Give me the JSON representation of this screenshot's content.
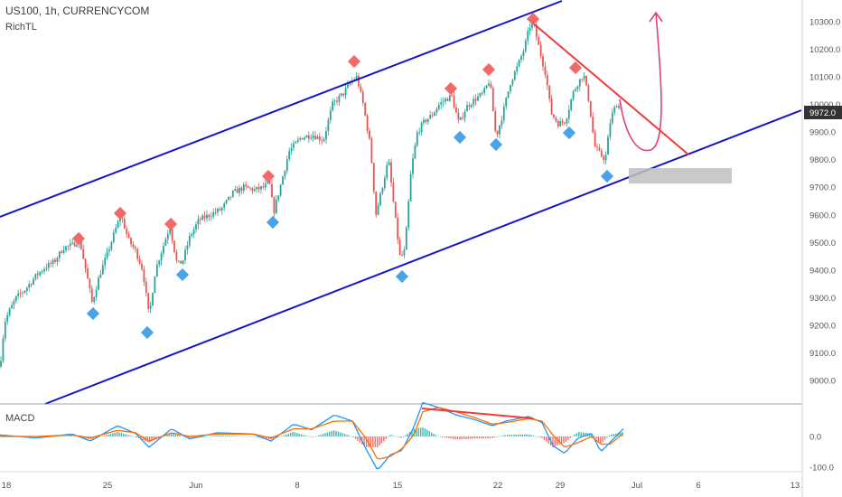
{
  "header": {
    "symbol": "US100, 1h, CURRENCYCOM",
    "author": "RichTL",
    "indicator": "MACD"
  },
  "colors": {
    "up": "#26a69a",
    "down": "#ef5350",
    "channel": "#1515c8",
    "resistance": "#ef3b3b",
    "projection": "#e0407a",
    "zone": "#bfbfbf",
    "marker_high": "#f06a6a",
    "marker_low": "#4aa3e8",
    "macd_line": "#2196f3",
    "signal_line": "#ff6d00",
    "price_tag": "#333333"
  },
  "chart_data": [
    {
      "type": "candlestick",
      "x_axis": {
        "labels": [
          "18",
          "25",
          "Jun",
          "8",
          "15",
          "22",
          "29",
          "Jul",
          "6",
          "13"
        ]
      },
      "y_axis": {
        "ticks": [
          "10300.0",
          "10200.0",
          "10100.0",
          "10000.0",
          "9900.0",
          "9800.0",
          "9700.0",
          "9600.0",
          "9500.0",
          "9400.0",
          "9300.0",
          "9200.0",
          "9100.0",
          "9000.0"
        ],
        "range": [
          8920,
          10360
        ]
      },
      "last_price": "9972.0",
      "price_path": [
        [
          0,
          9050
        ],
        [
          5,
          9210
        ],
        [
          10,
          9250
        ],
        [
          18,
          9300
        ],
        [
          28,
          9330
        ],
        [
          40,
          9380
        ],
        [
          50,
          9410
        ],
        [
          60,
          9430
        ],
        [
          70,
          9480
        ],
        [
          80,
          9490
        ],
        [
          88,
          9510
        ],
        [
          95,
          9400
        ],
        [
          102,
          9280
        ],
        [
          110,
          9380
        ],
        [
          120,
          9470
        ],
        [
          127,
          9540
        ],
        [
          134,
          9600
        ],
        [
          142,
          9510
        ],
        [
          150,
          9470
        ],
        [
          158,
          9400
        ],
        [
          165,
          9230
        ],
        [
          172,
          9400
        ],
        [
          180,
          9480
        ],
        [
          188,
          9560
        ],
        [
          196,
          9420
        ],
        [
          202,
          9430
        ],
        [
          210,
          9520
        ],
        [
          220,
          9580
        ],
        [
          232,
          9600
        ],
        [
          245,
          9620
        ],
        [
          258,
          9680
        ],
        [
          270,
          9700
        ],
        [
          282,
          9690
        ],
        [
          292,
          9700
        ],
        [
          298,
          9720
        ],
        [
          303,
          9610
        ],
        [
          310,
          9700
        ],
        [
          320,
          9830
        ],
        [
          333,
          9880
        ],
        [
          346,
          9890
        ],
        [
          358,
          9870
        ],
        [
          368,
          10000
        ],
        [
          380,
          10040
        ],
        [
          388,
          10080
        ],
        [
          395,
          10100
        ],
        [
          402,
          10000
        ],
        [
          410,
          9850
        ],
        [
          416,
          9600
        ],
        [
          423,
          9700
        ],
        [
          430,
          9800
        ],
        [
          437,
          9600
        ],
        [
          443,
          9440
        ],
        [
          448,
          9470
        ],
        [
          455,
          9760
        ],
        [
          462,
          9900
        ],
        [
          470,
          9940
        ],
        [
          478,
          9960
        ],
        [
          486,
          10000
        ],
        [
          494,
          10020
        ],
        [
          500,
          10030
        ],
        [
          508,
          9930
        ],
        [
          516,
          9990
        ],
        [
          526,
          10020
        ],
        [
          535,
          10040
        ],
        [
          542,
          10090
        ],
        [
          549,
          9880
        ],
        [
          556,
          9960
        ],
        [
          565,
          10080
        ],
        [
          573,
          10140
        ],
        [
          580,
          10200
        ],
        [
          586,
          10280
        ],
        [
          590,
          10300
        ],
        [
          597,
          10200
        ],
        [
          604,
          10110
        ],
        [
          610,
          9970
        ],
        [
          618,
          9930
        ],
        [
          626,
          9940
        ],
        [
          634,
          10040
        ],
        [
          640,
          10080
        ],
        [
          646,
          10110
        ],
        [
          652,
          10010
        ],
        [
          658,
          9850
        ],
        [
          664,
          9820
        ],
        [
          670,
          9800
        ],
        [
          676,
          9950
        ],
        [
          682,
          10000
        ],
        [
          688,
          9990
        ]
      ]
    },
    {
      "type": "line",
      "title": "MACD",
      "y_axis": {
        "ticks": [
          "0.0",
          "-100.0"
        ],
        "range": [
          -110,
          120
        ]
      },
      "series": [
        {
          "points": [
            [
              0,
              5
            ],
            [
              40,
              -5
            ],
            [
              80,
              8
            ],
            [
              100,
              -15
            ],
            [
              130,
              35
            ],
            [
              150,
              10
            ],
            [
              165,
              -35
            ],
            [
              190,
              25
            ],
            [
              210,
              -8
            ],
            [
              240,
              12
            ],
            [
              280,
              8
            ],
            [
              300,
              -15
            ],
            [
              325,
              40
            ],
            [
              345,
              22
            ],
            [
              370,
              70
            ],
            [
              390,
              50
            ],
            [
              405,
              -40
            ],
            [
              418,
              -110
            ],
            [
              432,
              -60
            ],
            [
              445,
              -45
            ],
            [
              458,
              30
            ],
            [
              468,
              110
            ],
            [
              485,
              95
            ],
            [
              505,
              70
            ],
            [
              525,
              55
            ],
            [
              545,
              35
            ],
            [
              560,
              50
            ],
            [
              585,
              65
            ],
            [
              600,
              45
            ],
            [
              612,
              -30
            ],
            [
              625,
              -55
            ],
            [
              640,
              -5
            ],
            [
              655,
              10
            ],
            [
              665,
              -50
            ],
            [
              675,
              -20
            ],
            [
              690,
              25
            ]
          ]
        },
        {
          "points": [
            [
              0,
              0
            ],
            [
              40,
              0
            ],
            [
              80,
              5
            ],
            [
              100,
              -5
            ],
            [
              130,
              20
            ],
            [
              150,
              12
            ],
            [
              165,
              -15
            ],
            [
              190,
              12
            ],
            [
              210,
              0
            ],
            [
              240,
              8
            ],
            [
              280,
              8
            ],
            [
              300,
              -5
            ],
            [
              325,
              25
            ],
            [
              345,
              25
            ],
            [
              370,
              50
            ],
            [
              390,
              50
            ],
            [
              405,
              -5
            ],
            [
              418,
              -75
            ],
            [
              432,
              -65
            ],
            [
              445,
              -40
            ],
            [
              458,
              5
            ],
            [
              468,
              80
            ],
            [
              485,
              95
            ],
            [
              505,
              80
            ],
            [
              525,
              62
            ],
            [
              545,
              40
            ],
            [
              560,
              45
            ],
            [
              585,
              58
            ],
            [
              600,
              50
            ],
            [
              612,
              5
            ],
            [
              625,
              -35
            ],
            [
              640,
              -20
            ],
            [
              655,
              0
            ],
            [
              665,
              -25
            ],
            [
              675,
              -25
            ],
            [
              690,
              10
            ]
          ]
        }
      ]
    }
  ]
}
